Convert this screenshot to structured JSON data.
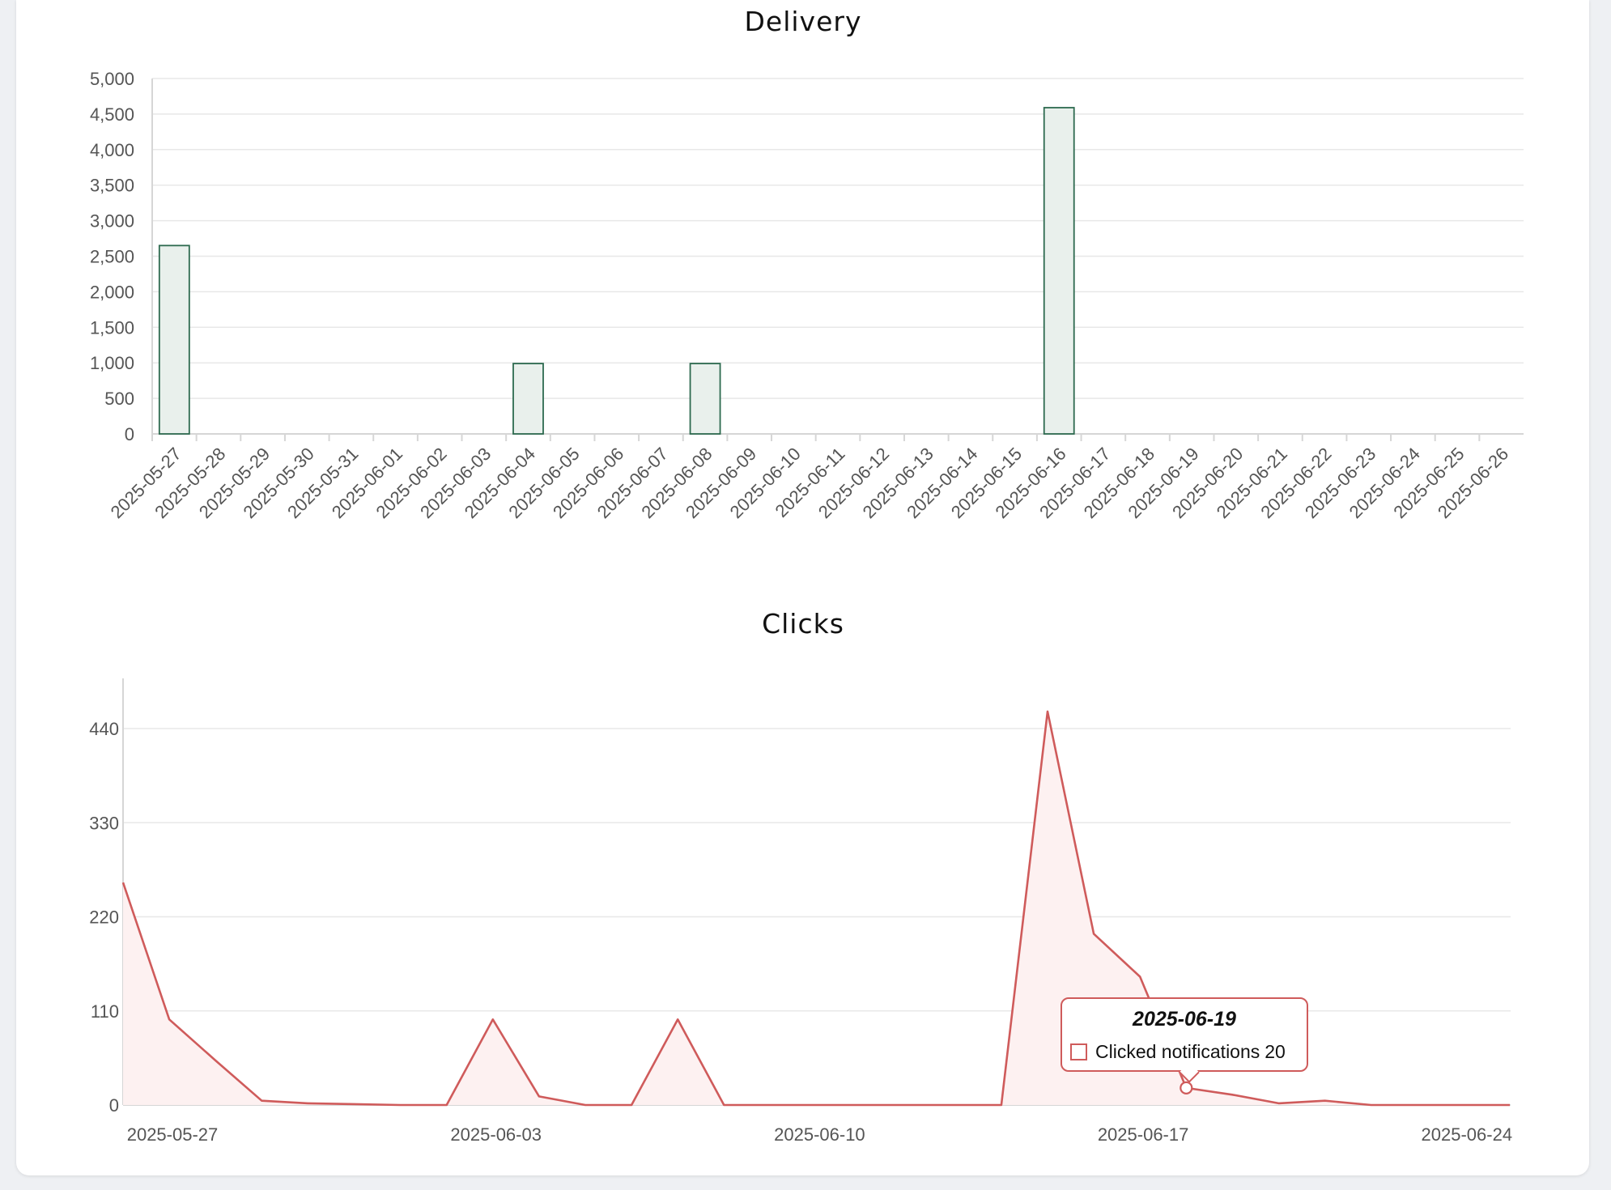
{
  "colors": {
    "bar_fill": "#e9f0ec",
    "bar_stroke": "#2d6a4f",
    "line_stroke": "#cf5b5b",
    "area_fill": "#fdf1f1",
    "grid": "#e8e8e8"
  },
  "tooltip": {
    "title": "2025-06-19",
    "label": "Clicked notifications",
    "value": "20"
  },
  "chart_data": [
    {
      "type": "bar",
      "title": "Delivery",
      "xlabel": "",
      "ylabel": "",
      "ylim": [
        0,
        5000
      ],
      "yticks": [
        0,
        500,
        1000,
        1500,
        2000,
        2500,
        3000,
        3500,
        4000,
        4500,
        5000
      ],
      "ytick_labels": [
        "0",
        "500",
        "1,000",
        "1,500",
        "2,000",
        "2,500",
        "3,000",
        "3,500",
        "4,000",
        "4,500",
        "5,000"
      ],
      "grid": true,
      "categories": [
        "2025-05-27",
        "2025-05-28",
        "2025-05-29",
        "2025-05-30",
        "2025-05-31",
        "2025-06-01",
        "2025-06-02",
        "2025-06-03",
        "2025-06-04",
        "2025-06-05",
        "2025-06-06",
        "2025-06-07",
        "2025-06-08",
        "2025-06-09",
        "2025-06-10",
        "2025-06-11",
        "2025-06-12",
        "2025-06-13",
        "2025-06-14",
        "2025-06-15",
        "2025-06-16",
        "2025-06-17",
        "2025-06-18",
        "2025-06-19",
        "2025-06-20",
        "2025-06-21",
        "2025-06-22",
        "2025-06-23",
        "2025-06-24",
        "2025-06-25",
        "2025-06-26"
      ],
      "values": [
        2650,
        0,
        0,
        0,
        0,
        0,
        0,
        0,
        990,
        0,
        0,
        0,
        990,
        0,
        0,
        0,
        0,
        0,
        0,
        0,
        4590,
        0,
        0,
        0,
        0,
        0,
        0,
        0,
        0,
        0,
        0
      ]
    },
    {
      "type": "area",
      "title": "Clicks",
      "xlabel": "",
      "ylabel": "",
      "ylim": [
        0,
        495
      ],
      "yticks": [
        0,
        110,
        220,
        330,
        440
      ],
      "ytick_labels": [
        "0",
        "110",
        "220",
        "330",
        "440"
      ],
      "xtick_labels": [
        "2025-05-27",
        "2025-06-03",
        "2025-06-10",
        "2025-06-17",
        "2025-06-24"
      ],
      "grid": true,
      "series": [
        {
          "name": "Clicked notifications",
          "x": [
            "2025-05-27",
            "2025-05-28",
            "2025-05-29",
            "2025-05-30",
            "2025-05-31",
            "2025-06-01",
            "2025-06-02",
            "2025-06-03",
            "2025-06-04",
            "2025-06-05",
            "2025-06-06",
            "2025-06-07",
            "2025-06-08",
            "2025-06-09",
            "2025-06-10",
            "2025-06-11",
            "2025-06-12",
            "2025-06-13",
            "2025-06-14",
            "2025-06-15",
            "2025-06-16",
            "2025-06-17",
            "2025-06-18",
            "2025-06-19",
            "2025-06-20",
            "2025-06-21",
            "2025-06-22",
            "2025-06-23",
            "2025-06-24",
            "2025-06-25",
            "2025-06-26"
          ],
          "values": [
            260,
            100,
            52,
            5,
            2,
            1,
            0,
            0,
            100,
            10,
            0,
            0,
            100,
            0,
            0,
            0,
            0,
            0,
            0,
            0,
            460,
            200,
            150,
            20,
            12,
            2,
            5,
            0,
            0,
            0,
            0
          ]
        }
      ]
    }
  ]
}
